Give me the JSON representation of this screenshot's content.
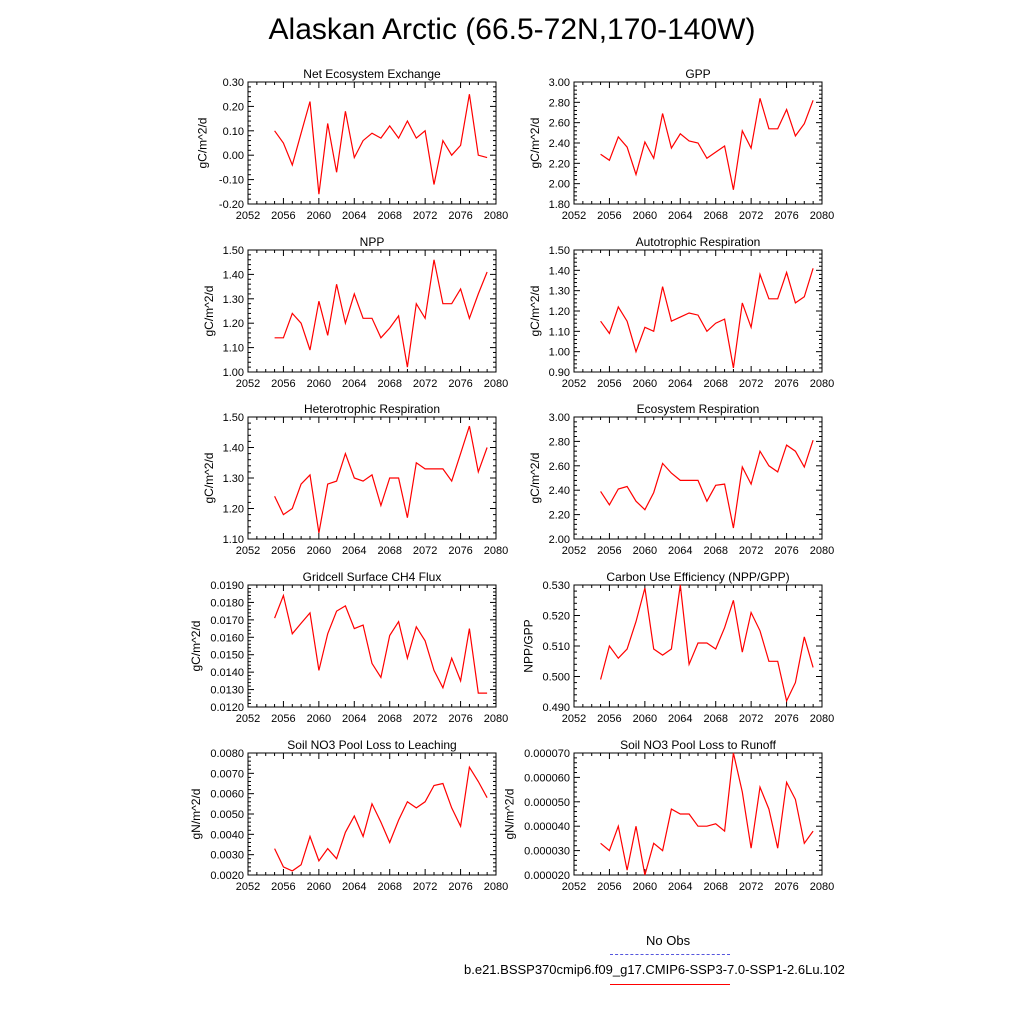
{
  "title": "Alaskan Arctic (66.5-72N,170-140W)",
  "colors": {
    "series": "#ff0000",
    "obs": "#5555dd"
  },
  "legend": {
    "obs_label": "No Obs",
    "model_label": "b.e21.BSSP370cmip6.f09_g17.CMIP6-SSP3-7.0-SSP1-2.6Lu.102"
  },
  "chart_data": [
    {
      "type": "line",
      "title": "Net Ecosystem Exchange",
      "ylabel": "gC/m^2/d",
      "xlabel": "",
      "xlim": [
        2052,
        2080
      ],
      "ylim": [
        -0.2,
        0.3
      ],
      "xticks": [
        "2052",
        "2056",
        "2060",
        "2064",
        "2068",
        "2072",
        "2076",
        "2080"
      ],
      "yticks": [
        "-0.20",
        "-0.10",
        "0.00",
        "0.10",
        "0.20",
        "0.30"
      ],
      "x": [
        2055,
        2056,
        2057,
        2058,
        2059,
        2060,
        2061,
        2062,
        2063,
        2064,
        2065,
        2066,
        2067,
        2068,
        2069,
        2070,
        2071,
        2072,
        2073,
        2074,
        2075,
        2076,
        2077,
        2078,
        2079
      ],
      "y": [
        0.1,
        0.05,
        -0.04,
        0.09,
        0.22,
        -0.16,
        0.13,
        -0.07,
        0.18,
        -0.01,
        0.06,
        0.09,
        0.07,
        0.12,
        0.07,
        0.14,
        0.07,
        0.1,
        -0.12,
        0.06,
        0.0,
        0.04,
        0.25,
        0.0,
        -0.01
      ]
    },
    {
      "type": "line",
      "title": "GPP",
      "ylabel": "gC/m^2/d",
      "xlabel": "",
      "xlim": [
        2052,
        2080
      ],
      "ylim": [
        1.8,
        3.0
      ],
      "xticks": [
        "2052",
        "2056",
        "2060",
        "2064",
        "2068",
        "2072",
        "2076",
        "2080"
      ],
      "yticks": [
        "1.80",
        "2.00",
        "2.20",
        "2.40",
        "2.60",
        "2.80",
        "3.00"
      ],
      "x": [
        2055,
        2056,
        2057,
        2058,
        2059,
        2060,
        2061,
        2062,
        2063,
        2064,
        2065,
        2066,
        2067,
        2068,
        2069,
        2070,
        2071,
        2072,
        2073,
        2074,
        2075,
        2076,
        2077,
        2078,
        2079
      ],
      "y": [
        2.29,
        2.23,
        2.46,
        2.36,
        2.09,
        2.41,
        2.25,
        2.69,
        2.35,
        2.49,
        2.42,
        2.4,
        2.25,
        2.31,
        2.37,
        1.94,
        2.52,
        2.35,
        2.84,
        2.54,
        2.54,
        2.73,
        2.47,
        2.59,
        2.82
      ]
    },
    {
      "type": "line",
      "title": "NPP",
      "ylabel": "gC/m^2/d",
      "xlabel": "",
      "xlim": [
        2052,
        2080
      ],
      "ylim": [
        1.0,
        1.5
      ],
      "xticks": [
        "2052",
        "2056",
        "2060",
        "2064",
        "2068",
        "2072",
        "2076",
        "2080"
      ],
      "yticks": [
        "1.00",
        "1.10",
        "1.20",
        "1.30",
        "1.40",
        "1.50"
      ],
      "x": [
        2055,
        2056,
        2057,
        2058,
        2059,
        2060,
        2061,
        2062,
        2063,
        2064,
        2065,
        2066,
        2067,
        2068,
        2069,
        2070,
        2071,
        2072,
        2073,
        2074,
        2075,
        2076,
        2077,
        2078,
        2079
      ],
      "y": [
        1.14,
        1.14,
        1.24,
        1.2,
        1.09,
        1.29,
        1.15,
        1.36,
        1.2,
        1.32,
        1.22,
        1.22,
        1.14,
        1.18,
        1.23,
        1.02,
        1.28,
        1.22,
        1.46,
        1.28,
        1.28,
        1.34,
        1.22,
        1.32,
        1.41
      ]
    },
    {
      "type": "line",
      "title": "Autotrophic Respiration",
      "ylabel": "gC/m^2/d",
      "xlabel": "",
      "xlim": [
        2052,
        2080
      ],
      "ylim": [
        0.9,
        1.5
      ],
      "xticks": [
        "2052",
        "2056",
        "2060",
        "2064",
        "2068",
        "2072",
        "2076",
        "2080"
      ],
      "yticks": [
        "0.90",
        "1.00",
        "1.10",
        "1.20",
        "1.30",
        "1.40",
        "1.50"
      ],
      "x": [
        2055,
        2056,
        2057,
        2058,
        2059,
        2060,
        2061,
        2062,
        2063,
        2064,
        2065,
        2066,
        2067,
        2068,
        2069,
        2070,
        2071,
        2072,
        2073,
        2074,
        2075,
        2076,
        2077,
        2078,
        2079
      ],
      "y": [
        1.15,
        1.09,
        1.22,
        1.15,
        1.0,
        1.12,
        1.1,
        1.32,
        1.15,
        1.17,
        1.19,
        1.18,
        1.1,
        1.14,
        1.16,
        0.92,
        1.24,
        1.12,
        1.38,
        1.26,
        1.26,
        1.39,
        1.24,
        1.27,
        1.41
      ]
    },
    {
      "type": "line",
      "title": "Heterotrophic Respiration",
      "ylabel": "gC/m^2/d",
      "xlabel": "",
      "xlim": [
        2052,
        2080
      ],
      "ylim": [
        1.1,
        1.5
      ],
      "xticks": [
        "2052",
        "2056",
        "2060",
        "2064",
        "2068",
        "2072",
        "2076",
        "2080"
      ],
      "yticks": [
        "1.10",
        "1.20",
        "1.30",
        "1.40",
        "1.50"
      ],
      "x": [
        2055,
        2056,
        2057,
        2058,
        2059,
        2060,
        2061,
        2062,
        2063,
        2064,
        2065,
        2066,
        2067,
        2068,
        2069,
        2070,
        2071,
        2072,
        2073,
        2074,
        2075,
        2076,
        2077,
        2078,
        2079
      ],
      "y": [
        1.24,
        1.18,
        1.2,
        1.28,
        1.31,
        1.12,
        1.28,
        1.29,
        1.38,
        1.3,
        1.29,
        1.31,
        1.21,
        1.3,
        1.3,
        1.17,
        1.35,
        1.33,
        1.33,
        1.33,
        1.29,
        1.38,
        1.47,
        1.32,
        1.4
      ]
    },
    {
      "type": "line",
      "title": "Ecosystem Respiration",
      "ylabel": "gC/m^2/d",
      "xlabel": "",
      "xlim": [
        2052,
        2080
      ],
      "ylim": [
        2.0,
        3.0
      ],
      "xticks": [
        "2052",
        "2056",
        "2060",
        "2064",
        "2068",
        "2072",
        "2076",
        "2080"
      ],
      "yticks": [
        "2.00",
        "2.20",
        "2.40",
        "2.60",
        "2.80",
        "3.00"
      ],
      "x": [
        2055,
        2056,
        2057,
        2058,
        2059,
        2060,
        2061,
        2062,
        2063,
        2064,
        2065,
        2066,
        2067,
        2068,
        2069,
        2070,
        2071,
        2072,
        2073,
        2074,
        2075,
        2076,
        2077,
        2078,
        2079
      ],
      "y": [
        2.39,
        2.28,
        2.41,
        2.43,
        2.31,
        2.24,
        2.38,
        2.62,
        2.54,
        2.48,
        2.48,
        2.48,
        2.31,
        2.44,
        2.45,
        2.09,
        2.59,
        2.45,
        2.72,
        2.6,
        2.55,
        2.77,
        2.72,
        2.59,
        2.81
      ]
    },
    {
      "type": "line",
      "title": "Gridcell Surface CH4 Flux",
      "ylabel": "gC/m^2/d",
      "xlabel": "",
      "xlim": [
        2052,
        2080
      ],
      "ylim": [
        0.012,
        0.019
      ],
      "xticks": [
        "2052",
        "2056",
        "2060",
        "2064",
        "2068",
        "2072",
        "2076",
        "2080"
      ],
      "yticks": [
        "0.0120",
        "0.0130",
        "0.0140",
        "0.0150",
        "0.0160",
        "0.0170",
        "0.0180",
        "0.0190"
      ],
      "x": [
        2055,
        2056,
        2057,
        2058,
        2059,
        2060,
        2061,
        2062,
        2063,
        2064,
        2065,
        2066,
        2067,
        2068,
        2069,
        2070,
        2071,
        2072,
        2073,
        2074,
        2075,
        2076,
        2077,
        2078,
        2079
      ],
      "y": [
        0.0171,
        0.0184,
        0.0162,
        0.0168,
        0.0174,
        0.0141,
        0.0162,
        0.0175,
        0.0178,
        0.0165,
        0.0167,
        0.0145,
        0.0137,
        0.0161,
        0.0169,
        0.0148,
        0.0166,
        0.0158,
        0.0141,
        0.0131,
        0.0148,
        0.0135,
        0.0165,
        0.0128,
        0.0128
      ]
    },
    {
      "type": "line",
      "title": "Carbon Use Efficiency (NPP/GPP)",
      "ylabel": "NPP/GPP",
      "xlabel": "",
      "xlim": [
        2052,
        2080
      ],
      "ylim": [
        0.49,
        0.53
      ],
      "xticks": [
        "2052",
        "2056",
        "2060",
        "2064",
        "2068",
        "2072",
        "2076",
        "2080"
      ],
      "yticks": [
        "0.490",
        "0.500",
        "0.510",
        "0.520",
        "0.530"
      ],
      "x": [
        2055,
        2056,
        2057,
        2058,
        2059,
        2060,
        2061,
        2062,
        2063,
        2064,
        2065,
        2066,
        2067,
        2068,
        2069,
        2070,
        2071,
        2072,
        2073,
        2074,
        2075,
        2076,
        2077,
        2078,
        2079
      ],
      "y": [
        0.499,
        0.51,
        0.506,
        0.509,
        0.518,
        0.529,
        0.509,
        0.507,
        0.509,
        0.53,
        0.504,
        0.511,
        0.511,
        0.509,
        0.516,
        0.525,
        0.508,
        0.521,
        0.515,
        0.505,
        0.505,
        0.492,
        0.498,
        0.513,
        0.503
      ]
    },
    {
      "type": "line",
      "title": "Soil NO3 Pool Loss to Leaching",
      "ylabel": "gN/m^2/d",
      "xlabel": "",
      "xlim": [
        2052,
        2080
      ],
      "ylim": [
        0.002,
        0.008
      ],
      "xticks": [
        "2052",
        "2056",
        "2060",
        "2064",
        "2068",
        "2072",
        "2076",
        "2080"
      ],
      "yticks": [
        "0.0020",
        "0.0030",
        "0.0040",
        "0.0050",
        "0.0060",
        "0.0070",
        "0.0080"
      ],
      "x": [
        2055,
        2056,
        2057,
        2058,
        2059,
        2060,
        2061,
        2062,
        2063,
        2064,
        2065,
        2066,
        2067,
        2068,
        2069,
        2070,
        2071,
        2072,
        2073,
        2074,
        2075,
        2076,
        2077,
        2078,
        2079
      ],
      "y": [
        0.0033,
        0.0024,
        0.0022,
        0.0025,
        0.0039,
        0.0027,
        0.0033,
        0.0028,
        0.0041,
        0.0049,
        0.0039,
        0.0055,
        0.0046,
        0.0036,
        0.0047,
        0.0056,
        0.0053,
        0.0056,
        0.0064,
        0.0065,
        0.0053,
        0.0044,
        0.0073,
        0.0066,
        0.0058
      ]
    },
    {
      "type": "line",
      "title": "Soil NO3 Pool Loss to Runoff",
      "ylabel": "gN/m^2/d",
      "xlabel": "",
      "xlim": [
        2052,
        2080
      ],
      "ylim": [
        2e-05,
        7e-05
      ],
      "xticks": [
        "2052",
        "2056",
        "2060",
        "2064",
        "2068",
        "2072",
        "2076",
        "2080"
      ],
      "yticks": [
        "0.000020",
        "0.000030",
        "0.000040",
        "0.000050",
        "0.000060",
        "0.000070"
      ],
      "x": [
        2055,
        2056,
        2057,
        2058,
        2059,
        2060,
        2061,
        2062,
        2063,
        2064,
        2065,
        2066,
        2067,
        2068,
        2069,
        2070,
        2071,
        2072,
        2073,
        2074,
        2075,
        2076,
        2077,
        2078,
        2079
      ],
      "y": [
        3.3e-05,
        3e-05,
        4e-05,
        2.2e-05,
        4e-05,
        2e-05,
        3.3e-05,
        3e-05,
        4.7e-05,
        4.5e-05,
        4.5e-05,
        4e-05,
        4e-05,
        4.1e-05,
        3.8e-05,
        7e-05,
        5.4e-05,
        3.1e-05,
        5.6e-05,
        4.7e-05,
        3.1e-05,
        5.8e-05,
        5.1e-05,
        3.3e-05,
        3.8e-05
      ]
    }
  ]
}
